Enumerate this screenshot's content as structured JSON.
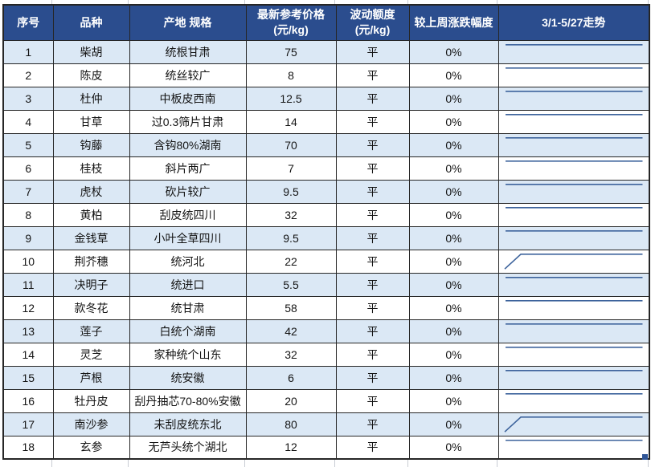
{
  "colors": {
    "header_bg": "#2b4d8e",
    "row_alt_bg": "#dbe8f5",
    "grid_border": "#262626",
    "sparkline": "#3d639c",
    "fill_handle": "#2f5597"
  },
  "table": {
    "columns": [
      {
        "key": "no",
        "label": "序号"
      },
      {
        "key": "variety",
        "label": "品种"
      },
      {
        "key": "origin_spec",
        "label": "产地 规格"
      },
      {
        "key": "price",
        "label": "最新参考价格\n(元/kg)"
      },
      {
        "key": "fluctuation",
        "label": "波动额度\n(元/kg)"
      },
      {
        "key": "weekly_change",
        "label": "较上周涨跌幅度"
      },
      {
        "key": "trend",
        "label": "3/1-5/27走势"
      }
    ],
    "rows": [
      {
        "no": "1",
        "variety": "柴胡",
        "origin_spec": "统根甘肃",
        "price": "75",
        "fluctuation": "平",
        "weekly_change": "0%",
        "trend": "flat"
      },
      {
        "no": "2",
        "variety": "陈皮",
        "origin_spec": "统丝较广",
        "price": "8",
        "fluctuation": "平",
        "weekly_change": "0%",
        "trend": "flat"
      },
      {
        "no": "3",
        "variety": "杜仲",
        "origin_spec": "中板皮西南",
        "price": "12.5",
        "fluctuation": "平",
        "weekly_change": "0%",
        "trend": "flat"
      },
      {
        "no": "4",
        "variety": "甘草",
        "origin_spec": "过0.3筛片甘肃",
        "price": "14",
        "fluctuation": "平",
        "weekly_change": "0%",
        "trend": "flat"
      },
      {
        "no": "5",
        "variety": "钩藤",
        "origin_spec": "含钩80%湖南",
        "price": "70",
        "fluctuation": "平",
        "weekly_change": "0%",
        "trend": "flat"
      },
      {
        "no": "6",
        "variety": "桂枝",
        "origin_spec": "斜片两广",
        "price": "7",
        "fluctuation": "平",
        "weekly_change": "0%",
        "trend": "flat"
      },
      {
        "no": "7",
        "variety": "虎杖",
        "origin_spec": "砍片较广",
        "price": "9.5",
        "fluctuation": "平",
        "weekly_change": "0%",
        "trend": "flat"
      },
      {
        "no": "8",
        "variety": "黄柏",
        "origin_spec": "刮皮统四川",
        "price": "32",
        "fluctuation": "平",
        "weekly_change": "0%",
        "trend": "flat"
      },
      {
        "no": "9",
        "variety": "金钱草",
        "origin_spec": "小叶全草四川",
        "price": "9.5",
        "fluctuation": "平",
        "weekly_change": "0%",
        "trend": "flat"
      },
      {
        "no": "10",
        "variety": "荆芥穗",
        "origin_spec": "统河北",
        "price": "22",
        "fluctuation": "平",
        "weekly_change": "0%",
        "trend": "rise_then_flat"
      },
      {
        "no": "11",
        "variety": "决明子",
        "origin_spec": "统进口",
        "price": "5.5",
        "fluctuation": "平",
        "weekly_change": "0%",
        "trend": "flat"
      },
      {
        "no": "12",
        "variety": "款冬花",
        "origin_spec": "统甘肃",
        "price": "58",
        "fluctuation": "平",
        "weekly_change": "0%",
        "trend": "flat"
      },
      {
        "no": "13",
        "variety": "莲子",
        "origin_spec": "白统个湖南",
        "price": "42",
        "fluctuation": "平",
        "weekly_change": "0%",
        "trend": "flat"
      },
      {
        "no": "14",
        "variety": "灵芝",
        "origin_spec": "家种统个山东",
        "price": "32",
        "fluctuation": "平",
        "weekly_change": "0%",
        "trend": "flat"
      },
      {
        "no": "15",
        "variety": "芦根",
        "origin_spec": "统安徽",
        "price": "6",
        "fluctuation": "平",
        "weekly_change": "0%",
        "trend": "flat"
      },
      {
        "no": "16",
        "variety": "牡丹皮",
        "origin_spec": "刮丹抽芯70-80%安徽",
        "price": "20",
        "fluctuation": "平",
        "weekly_change": "0%",
        "trend": "flat"
      },
      {
        "no": "17",
        "variety": "南沙参",
        "origin_spec": "未刮皮统东北",
        "price": "80",
        "fluctuation": "平",
        "weekly_change": "0%",
        "trend": "rise_then_flat"
      },
      {
        "no": "18",
        "variety": "玄参",
        "origin_spec": "无芦头统个湖北",
        "price": "12",
        "fluctuation": "平",
        "weekly_change": "0%",
        "trend": "flat"
      }
    ]
  }
}
